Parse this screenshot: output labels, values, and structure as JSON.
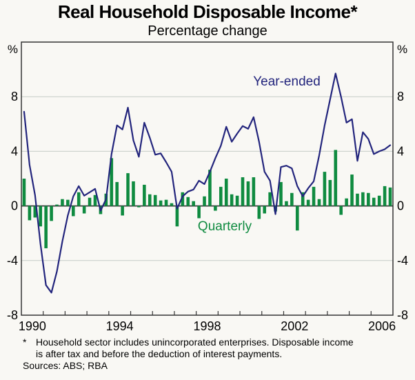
{
  "chart_data": {
    "type": "bar",
    "combo": "bar+line",
    "title": "Real Household Disposable Income*",
    "subtitle": "Percentage change",
    "y_axis": {
      "unit_label": "%",
      "ticks": [
        8,
        4,
        0,
        -4,
        -8
      ],
      "gridlines": [
        8,
        4,
        -4
      ],
      "range": [
        -8,
        12
      ]
    },
    "x_axis": {
      "labels": [
        "1990",
        "1994",
        "1998",
        "2002",
        "2006"
      ],
      "label_years": [
        1990,
        1994,
        1998,
        2002,
        2006
      ],
      "range_years": [
        1990,
        2007
      ],
      "tick_every_years": 1
    },
    "frequency": "quarterly",
    "quarters_start": "1990Q1",
    "quarters_end": "2006Q4",
    "series": [
      {
        "name": "Year-ended",
        "type": "line",
        "color": "#22247c",
        "values": [
          6.9,
          3.0,
          0.8,
          -2.8,
          -5.8,
          -6.35,
          -4.8,
          -2.6,
          -0.7,
          0.7,
          1.45,
          0.75,
          1.0,
          1.25,
          -0.35,
          0.5,
          3.8,
          5.9,
          5.6,
          7.2,
          4.8,
          3.6,
          6.1,
          5.0,
          3.75,
          3.85,
          3.2,
          2.5,
          -0.2,
          0.7,
          1.05,
          1.2,
          1.85,
          1.6,
          2.5,
          3.5,
          4.4,
          5.8,
          4.7,
          5.3,
          5.85,
          5.65,
          6.5,
          4.7,
          2.5,
          1.85,
          -0.6,
          2.85,
          2.95,
          2.75,
          1.45,
          0.7,
          1.3,
          1.8,
          3.7,
          5.9,
          7.8,
          9.7,
          8.0,
          6.1,
          6.35,
          3.3,
          5.4,
          4.9,
          3.8,
          4.0,
          4.15,
          4.45
        ]
      },
      {
        "name": "Quarterly",
        "type": "bar",
        "color": "#0f8b40",
        "values": [
          2.0,
          -1.05,
          -0.85,
          -1.5,
          -3.1,
          -1.1,
          0.1,
          0.5,
          0.45,
          -0.75,
          1.0,
          -0.55,
          0.6,
          0.8,
          -0.6,
          0.9,
          3.5,
          1.75,
          -0.7,
          2.4,
          1.8,
          -0.1,
          1.55,
          0.85,
          0.8,
          0.4,
          0.45,
          0.2,
          -1.5,
          1.0,
          0.65,
          0.35,
          -0.9,
          0.7,
          2.65,
          -0.35,
          1.4,
          2.0,
          0.85,
          0.75,
          2.1,
          1.8,
          2.1,
          -0.95,
          -0.55,
          1.0,
          -0.4,
          1.75,
          0.35,
          0.95,
          -1.8,
          1.0,
          0.45,
          1.4,
          0.5,
          2.5,
          1.9,
          4.1,
          -0.65,
          0.55,
          2.3,
          0.9,
          1.0,
          0.95,
          0.6,
          0.75,
          1.45,
          1.35
        ]
      }
    ],
    "legend_position": "annotations-on-plot",
    "grid_on": true
  },
  "footnote": {
    "marker": "*",
    "line1": "Household sector includes unincorporated enterprises. Disposable income",
    "line2": "is after tax and before the deduction of interest payments.",
    "sources": "Sources: ABS; RBA"
  },
  "colors": {
    "background": "#f9f8f4",
    "plot_border": "#333333",
    "gridline": "#c6ccc6",
    "zero_line": "#3b3b3b",
    "tick": "#333333",
    "line_series": "#22247c",
    "bar_series": "#0f8b40",
    "text": "#000000"
  }
}
